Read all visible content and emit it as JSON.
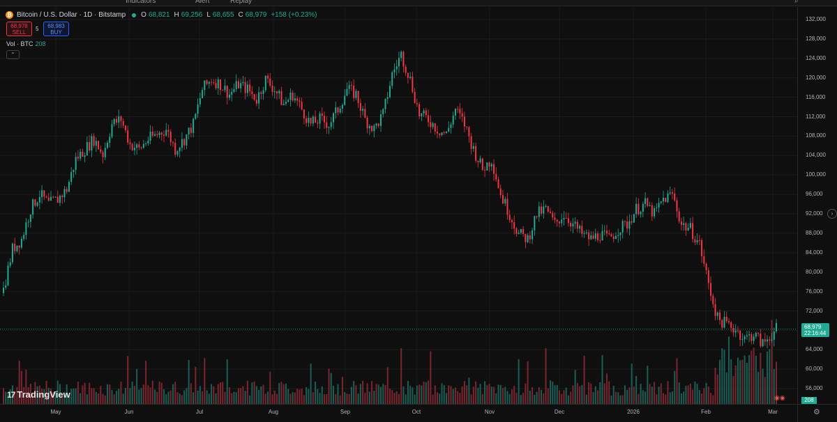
{
  "topbar": {
    "items": [
      "Indicators",
      "Alert",
      "Replay"
    ]
  },
  "legend": {
    "symbol": "Bitcoin / U.S. Dollar · 1D · Bitstamp",
    "open_label": "O",
    "open": "68,821",
    "high_label": "H",
    "high": "69,256",
    "low_label": "L",
    "low": "68,655",
    "close_label": "C",
    "close": "68,979",
    "change": "+158 (+0.23%)",
    "sell_price": "68,978",
    "sell_label": "SELL",
    "spread": "5",
    "buy_price": "68,983",
    "buy_label": "BUY",
    "volume_label": "Vol · BTC",
    "volume_value": "208"
  },
  "price_axis": {
    "ticks": [
      "132,000",
      "128,000",
      "124,000",
      "120,000",
      "116,000",
      "112,000",
      "108,000",
      "104,000",
      "100,000",
      "96,000",
      "92,000",
      "88,000",
      "84,000",
      "80,000",
      "76,000",
      "72,000",
      "64,000",
      "60,000",
      "56,000"
    ],
    "last_price": "68,979",
    "countdown": "22:16:44",
    "volume_tag": "208"
  },
  "time_axis": {
    "ticks": [
      "May",
      "Jun",
      "Jul",
      "Aug",
      "Sep",
      "Oct",
      "Nov",
      "Dec",
      "2026",
      "Feb",
      "Mar"
    ]
  },
  "branding": {
    "logo_text": "TradingView"
  },
  "colors": {
    "up": "#22ab94",
    "down": "#f23645",
    "bg": "#0f0f0f"
  },
  "chart_data": {
    "type": "candlestick",
    "symbol": "BTCUSD",
    "interval": "1D",
    "y_range": [
      54000,
      133500
    ],
    "last_price": 68979,
    "months": [
      "May",
      "Jun",
      "Jul",
      "Aug",
      "Sep",
      "Oct",
      "Nov",
      "Dec",
      "2026",
      "Feb",
      "Mar"
    ],
    "close_path": [
      [
        0,
        77000
      ],
      [
        4,
        85000
      ],
      [
        8,
        87000
      ],
      [
        12,
        93000
      ],
      [
        16,
        96000
      ],
      [
        20,
        94000
      ],
      [
        24,
        95000
      ],
      [
        28,
        97000
      ],
      [
        32,
        103000
      ],
      [
        36,
        105000
      ],
      [
        40,
        107000
      ],
      [
        44,
        104000
      ],
      [
        48,
        110000
      ],
      [
        52,
        111000
      ],
      [
        56,
        106000
      ],
      [
        60,
        105000
      ],
      [
        64,
        107000
      ],
      [
        68,
        108000
      ],
      [
        72,
        109000
      ],
      [
        76,
        105000
      ],
      [
        80,
        107000
      ],
      [
        84,
        110000
      ],
      [
        88,
        117000
      ],
      [
        92,
        119000
      ],
      [
        96,
        118000
      ],
      [
        100,
        116000
      ],
      [
        104,
        118000
      ],
      [
        108,
        117000
      ],
      [
        112,
        115000
      ],
      [
        116,
        119000
      ],
      [
        120,
        117000
      ],
      [
        124,
        114000
      ],
      [
        128,
        116000
      ],
      [
        132,
        113000
      ],
      [
        136,
        110000
      ],
      [
        140,
        111000
      ],
      [
        144,
        110000
      ],
      [
        148,
        113000
      ],
      [
        152,
        117000
      ],
      [
        156,
        116000
      ],
      [
        160,
        111000
      ],
      [
        164,
        109000
      ],
      [
        168,
        112000
      ],
      [
        172,
        120000
      ],
      [
        176,
        124000
      ],
      [
        180,
        119000
      ],
      [
        184,
        112000
      ],
      [
        188,
        111000
      ],
      [
        192,
        109000
      ],
      [
        196,
        108000
      ],
      [
        200,
        113000
      ],
      [
        204,
        110000
      ],
      [
        208,
        105000
      ],
      [
        212,
        101000
      ],
      [
        216,
        103000
      ],
      [
        220,
        96000
      ],
      [
        224,
        92000
      ],
      [
        228,
        88000
      ],
      [
        232,
        87000
      ],
      [
        236,
        92000
      ],
      [
        240,
        93000
      ],
      [
        244,
        90000
      ],
      [
        248,
        92000
      ],
      [
        252,
        90000
      ],
      [
        256,
        88000
      ],
      [
        260,
        87000
      ],
      [
        264,
        88000
      ],
      [
        268,
        87000
      ],
      [
        272,
        89000
      ],
      [
        276,
        90000
      ],
      [
        280,
        93000
      ],
      [
        284,
        94000
      ],
      [
        288,
        92000
      ],
      [
        292,
        95000
      ],
      [
        296,
        96000
      ],
      [
        300,
        90000
      ],
      [
        304,
        89000
      ],
      [
        308,
        86000
      ],
      [
        312,
        78000
      ],
      [
        316,
        71000
      ],
      [
        320,
        70000
      ],
      [
        324,
        69000
      ],
      [
        328,
        67000
      ],
      [
        332,
        68000
      ],
      [
        336,
        66000
      ],
      [
        340,
        68000
      ],
      [
        342,
        68979
      ]
    ]
  }
}
